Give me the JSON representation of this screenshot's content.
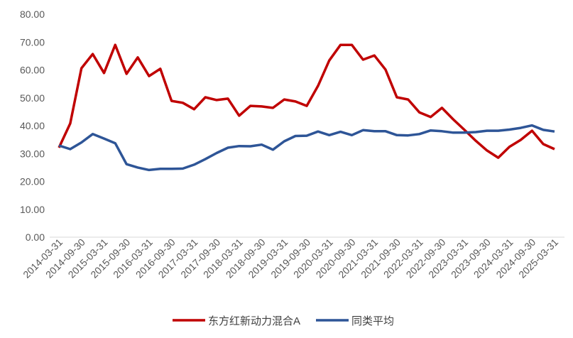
{
  "chart_data": {
    "type": "line",
    "categories": [
      "2014-03-31",
      null,
      "2014-09-30",
      null,
      "2015-03-31",
      null,
      "2015-09-30",
      null,
      "2016-03-31",
      null,
      "2016-09-30",
      null,
      "2017-03-31",
      null,
      "2017-09-30",
      null,
      "2018-03-31",
      null,
      "2018-09-30",
      null,
      "2019-03-31",
      null,
      "2019-09-30",
      null,
      "2020-03-31",
      null,
      "2020-09-30",
      null,
      "2021-03-31",
      null,
      "2021-09-30",
      null,
      "2022-03-31",
      null,
      "2022-09-30",
      null,
      "2023-03-31",
      null,
      "2023-09-30",
      null,
      "2024-03-31",
      null,
      "2024-09-30",
      null,
      "2025-03-31"
    ],
    "series": [
      {
        "name": "东方红新动力混合A",
        "color": "#c00000",
        "values": [
          32.1,
          40.8,
          60.6,
          65.7,
          58.9,
          69.0,
          58.6,
          64.5,
          57.8,
          60.4,
          48.9,
          48.2,
          45.9,
          50.2,
          49.2,
          49.7,
          43.6,
          47.1,
          46.9,
          46.4,
          49.4,
          48.7,
          47.1,
          54.3,
          63.4,
          69.0,
          69.0,
          63.7,
          65.2,
          60.1,
          50.2,
          49.4,
          44.8,
          43.1,
          46.4,
          42.3,
          38.5,
          34.6,
          31.1,
          28.5,
          32.4,
          34.9,
          38.2,
          33.4,
          31.6
        ]
      },
      {
        "name": "同类平均",
        "color": "#2e5597",
        "values": [
          32.9,
          31.6,
          34.0,
          37.0,
          35.4,
          33.7,
          26.2,
          25.0,
          24.1,
          24.5,
          24.5,
          24.6,
          26.0,
          28.0,
          30.2,
          32.1,
          32.7,
          32.6,
          33.2,
          31.4,
          34.4,
          36.3,
          36.4,
          37.9,
          36.6,
          37.8,
          36.6,
          38.4,
          38.0,
          38.0,
          36.6,
          36.5,
          37.0,
          38.3,
          38.0,
          37.5,
          37.5,
          37.7,
          38.2,
          38.2,
          38.6,
          39.2,
          40.1,
          38.5,
          37.9
        ]
      }
    ],
    "ylim": [
      0,
      80
    ],
    "yticks": [
      {
        "value": 0,
        "label": "0.00"
      },
      {
        "value": 10,
        "label": "10.00"
      },
      {
        "value": 20,
        "label": "20.00"
      },
      {
        "value": 30,
        "label": "30.00"
      },
      {
        "value": 40,
        "label": "40.00"
      },
      {
        "value": 50,
        "label": "50.00"
      },
      {
        "value": 60,
        "label": "60.00"
      },
      {
        "value": 70,
        "label": "70.00"
      },
      {
        "value": 80,
        "label": "80.00"
      }
    ],
    "legend": "bottom"
  }
}
